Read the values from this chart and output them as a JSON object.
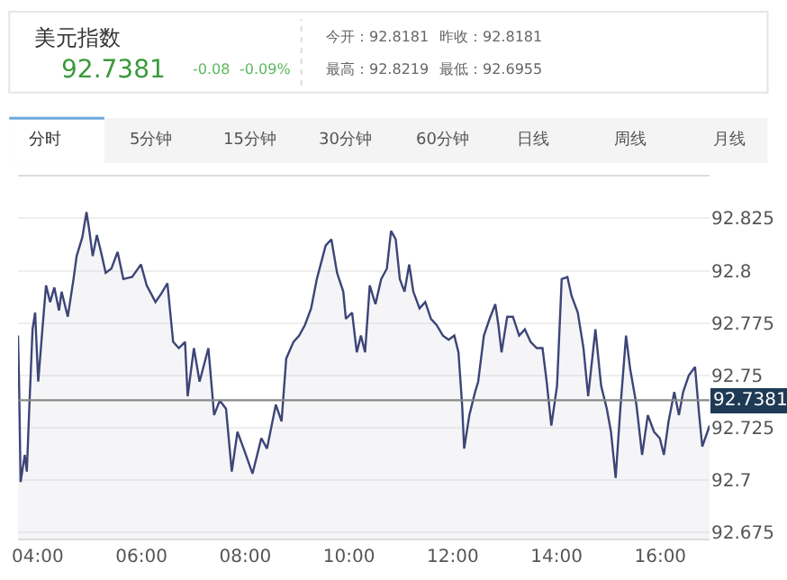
{
  "chart_data": {
    "type": "area",
    "title": "美元指数",
    "annotations": [
      "92.7381",
      "-0.08",
      "-0.09%",
      "今开：92.8181",
      "昨收：92.8181",
      "最高：92.8219",
      "最低：92.6955",
      "分时",
      "5分钟",
      "15分钟",
      "30分钟",
      "60分钟",
      "日线",
      "周线",
      "月线"
    ],
    "x": [
      3.62,
      3.64,
      3.67,
      3.75,
      3.79,
      3.84,
      3.9,
      3.95,
      4.01,
      4.09,
      4.16,
      4.24,
      4.32,
      4.41,
      4.46,
      4.58,
      4.69,
      4.75,
      4.86,
      4.94,
      4.99,
      5.06,
      5.14,
      5.22,
      5.31,
      5.42,
      5.54,
      5.65,
      5.82,
      5.99,
      6.1,
      6.27,
      6.38,
      6.5,
      6.61,
      6.72,
      6.84,
      6.89,
      7.01,
      7.12,
      7.29,
      7.4,
      7.51,
      7.63,
      7.74,
      7.85,
      7.97,
      8.14,
      8.31,
      8.42,
      8.59,
      8.7,
      8.79,
      8.93,
      9.04,
      9.15,
      9.27,
      9.38,
      9.55,
      9.66,
      9.77,
      9.89,
      9.94,
      10.06,
      10.15,
      10.23,
      10.31,
      10.4,
      10.51,
      10.62,
      10.73,
      10.81,
      10.9,
      10.98,
      11.07,
      11.16,
      11.24,
      11.36,
      11.47,
      11.58,
      11.69,
      11.81,
      11.92,
      12.03,
      12.11,
      12.18,
      12.22,
      12.32,
      12.43,
      12.49,
      12.6,
      12.71,
      12.82,
      12.88,
      12.94,
      13.05,
      13.16,
      13.28,
      13.39,
      13.5,
      13.62,
      13.73,
      13.81,
      13.9,
      14.01,
      14.1,
      14.21,
      14.29,
      14.41,
      14.52,
      14.61,
      14.75,
      14.86,
      14.97,
      15.05,
      15.14,
      15.23,
      15.34,
      15.42,
      15.54,
      15.65,
      15.76,
      15.88,
      15.99,
      16.07,
      16.16,
      16.27,
      16.36,
      16.44,
      16.55,
      16.67,
      16.75,
      16.81,
      16.95
    ],
    "series": [
      {
        "color": "#3d4577",
        "values": [
          92.769,
          92.747,
          92.699,
          92.712,
          92.704,
          92.736,
          92.772,
          92.78,
          92.747,
          92.772,
          92.793,
          92.785,
          92.792,
          92.781,
          92.79,
          92.778,
          92.796,
          92.807,
          92.816,
          92.828,
          92.82,
          92.807,
          92.817,
          92.809,
          92.799,
          92.801,
          92.809,
          92.796,
          92.797,
          92.803,
          92.793,
          92.785,
          92.789,
          92.794,
          92.766,
          92.763,
          92.766,
          92.74,
          92.763,
          92.747,
          92.763,
          92.731,
          92.738,
          92.734,
          92.704,
          92.723,
          92.715,
          92.703,
          92.72,
          92.715,
          92.736,
          92.728,
          92.758,
          92.766,
          92.769,
          92.774,
          92.782,
          92.796,
          92.812,
          92.815,
          92.799,
          92.79,
          92.777,
          92.78,
          92.761,
          92.769,
          92.761,
          92.793,
          92.784,
          92.796,
          92.801,
          92.819,
          92.815,
          92.796,
          92.79,
          92.803,
          92.79,
          92.782,
          92.785,
          92.777,
          92.774,
          92.769,
          92.767,
          92.769,
          92.761,
          92.736,
          92.715,
          92.731,
          92.742,
          92.747,
          92.769,
          92.777,
          92.784,
          92.774,
          92.761,
          92.778,
          92.778,
          92.769,
          92.772,
          92.766,
          92.763,
          92.763,
          92.747,
          92.726,
          92.745,
          92.796,
          92.797,
          92.788,
          92.78,
          92.763,
          92.74,
          92.772,
          92.745,
          92.734,
          92.723,
          92.701,
          92.734,
          92.769,
          92.753,
          92.736,
          92.712,
          92.731,
          92.723,
          92.72,
          92.712,
          92.728,
          92.742,
          92.731,
          92.742,
          92.75,
          92.754,
          92.731,
          92.716,
          92.726
        ]
      }
    ],
    "xlim": [
      3.62,
      16.95
    ],
    "xticks": [
      {
        "value": 4,
        "label": "04:00"
      },
      {
        "value": 6,
        "label": "06:00"
      },
      {
        "value": 8,
        "label": "08:00"
      },
      {
        "value": 10,
        "label": "10:00"
      },
      {
        "value": 12,
        "label": "12:00"
      },
      {
        "value": 14,
        "label": "14:00"
      },
      {
        "value": 16,
        "label": "16:00"
      }
    ],
    "ylim": [
      92.672,
      92.845
    ],
    "yticks": [
      92.675,
      92.7,
      92.725,
      92.75,
      92.775,
      92.8,
      92.825
    ],
    "ref_lines": [
      {
        "axis": "y",
        "value": 92.7381,
        "label": "92.7381",
        "color": "#888888"
      }
    ],
    "grid": "y"
  }
}
